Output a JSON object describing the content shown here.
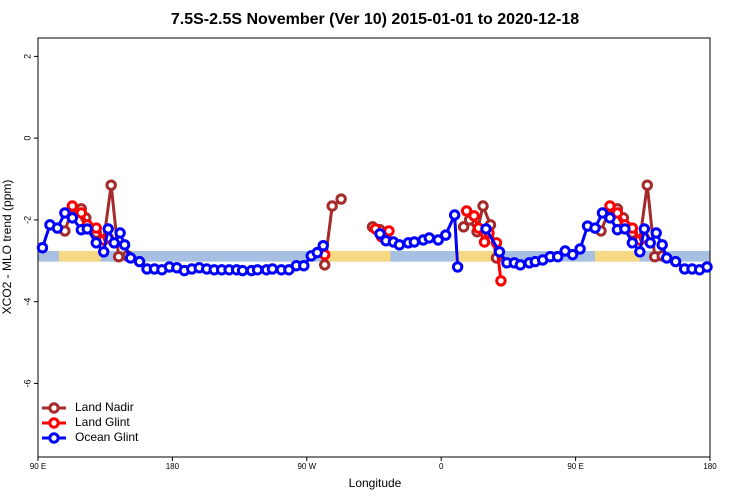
{
  "chart_data": {
    "type": "line",
    "title": "7.5S-2.5S November (Ver 10)   2015-01-01 to 2020-12-18",
    "x_label": "Longitude",
    "y_label": "XCO2 - MLO trend (ppm)",
    "xlim": [
      90,
      540
    ],
    "ylim": [
      -7.8,
      2.45
    ],
    "xticks": [
      {
        "value": 90,
        "label": "90 E"
      },
      180,
      {
        "value": 270,
        "label": "90 W"
      },
      {
        "value": 360,
        "label": "0"
      },
      {
        "value": 450,
        "label": "90 E"
      },
      {
        "value": 540,
        "label": "180"
      }
    ],
    "yticks": [
      2,
      0,
      -2,
      -4,
      -6
    ],
    "band": {
      "range": [
        -3.02,
        -2.76
      ],
      "color": "#a7bfe0",
      "land_color": "#f7d983",
      "land_spans": [
        [
          104,
          132
        ],
        [
          284,
          326
        ],
        [
          369,
          399
        ],
        [
          463,
          493
        ]
      ]
    },
    "legend": "bottom-left",
    "series": [
      {
        "name": "Land Nadir",
        "color": "#a52a2a",
        "x": [
          108,
          113,
          119,
          122,
          129,
          134,
          139,
          144,
          150,
          null,
          282,
          287,
          293,
          null,
          314,
          319,
          323,
          null,
          375,
          379,
          384,
          388,
          393,
          397,
          null,
          467,
          473,
          478,
          482,
          488,
          493,
          498,
          503,
          508
        ],
        "values": [
          -2.27,
          -1.73,
          -1.73,
          -1.95,
          -2.32,
          -2.49,
          -1.15,
          -2.9,
          -2.88,
          null,
          -3.1,
          -1.66,
          -1.49,
          null,
          -2.17,
          -2.24,
          -2.44,
          null,
          -2.17,
          -2.0,
          -2.29,
          -1.66,
          -2.12,
          -2.93,
          null,
          -2.27,
          -1.73,
          -1.73,
          -1.95,
          -2.32,
          -2.49,
          -1.15,
          -2.9,
          -2.88
        ]
      },
      {
        "name": "Land Glint",
        "color": "#ff0000",
        "x": [
          113,
          119,
          123,
          129,
          134,
          137,
          null,
          282,
          null,
          316,
          320,
          325,
          null,
          377,
          382,
          385,
          389,
          392,
          397,
          400,
          null,
          473,
          478,
          483,
          488,
          493,
          496
        ],
        "values": [
          -1.66,
          -1.83,
          -2.12,
          -2.2,
          -2.49,
          -2.44,
          null,
          -2.85,
          null,
          -2.22,
          -2.41,
          -2.27,
          null,
          -1.78,
          -1.9,
          -2.2,
          -2.54,
          -2.32,
          -2.56,
          -3.49,
          null,
          -1.66,
          -1.83,
          -2.12,
          -2.2,
          -2.49,
          -2.44
        ]
      },
      {
        "name": "Ocean Glint",
        "color": "#0000ff",
        "x": [
          93,
          98,
          103,
          108,
          113,
          119,
          123,
          129,
          134,
          137,
          141,
          145,
          148,
          152,
          158,
          163,
          168,
          173,
          178,
          183,
          188,
          193,
          198,
          203,
          208,
          213,
          218,
          223,
          227,
          233,
          237,
          243,
          247,
          253,
          258,
          263,
          268,
          273,
          277,
          281,
          null,
          319,
          323,
          328,
          332,
          338,
          342,
          348,
          352,
          358,
          363,
          369,
          371,
          null,
          390,
          399,
          404,
          409,
          413,
          419,
          423,
          428,
          433,
          438,
          443,
          448,
          453,
          458,
          463,
          468,
          473,
          478,
          483,
          488,
          493,
          496,
          500,
          504,
          508,
          511,
          517,
          523,
          528,
          533,
          538
        ],
        "values": [
          -2.68,
          -2.12,
          -2.2,
          -1.83,
          -1.95,
          -2.24,
          -2.22,
          -2.56,
          -2.78,
          -2.22,
          -2.56,
          -2.32,
          -2.61,
          -2.93,
          -3.02,
          -3.2,
          -3.2,
          -3.22,
          -3.15,
          -3.17,
          -3.24,
          -3.2,
          -3.17,
          -3.2,
          -3.22,
          -3.22,
          -3.22,
          -3.22,
          -3.24,
          -3.24,
          -3.22,
          -3.22,
          -3.2,
          -3.22,
          -3.22,
          -3.12,
          -3.12,
          -2.88,
          -2.8,
          -2.63,
          null,
          -2.34,
          -2.51,
          -2.54,
          -2.61,
          -2.56,
          -2.54,
          -2.49,
          -2.44,
          -2.49,
          -2.37,
          -1.88,
          -3.15,
          null,
          -2.22,
          -2.78,
          -3.05,
          -3.05,
          -3.1,
          -3.05,
          -3.02,
          -2.98,
          -2.9,
          -2.9,
          -2.76,
          -2.85,
          -2.71,
          -2.15,
          -2.2,
          -1.83,
          -1.95,
          -2.24,
          -2.22,
          -2.56,
          -2.78,
          -2.22,
          -2.56,
          -2.32,
          -2.61,
          -2.93,
          -3.02,
          -3.2,
          -3.2,
          -3.22,
          -3.15
        ]
      }
    ]
  }
}
